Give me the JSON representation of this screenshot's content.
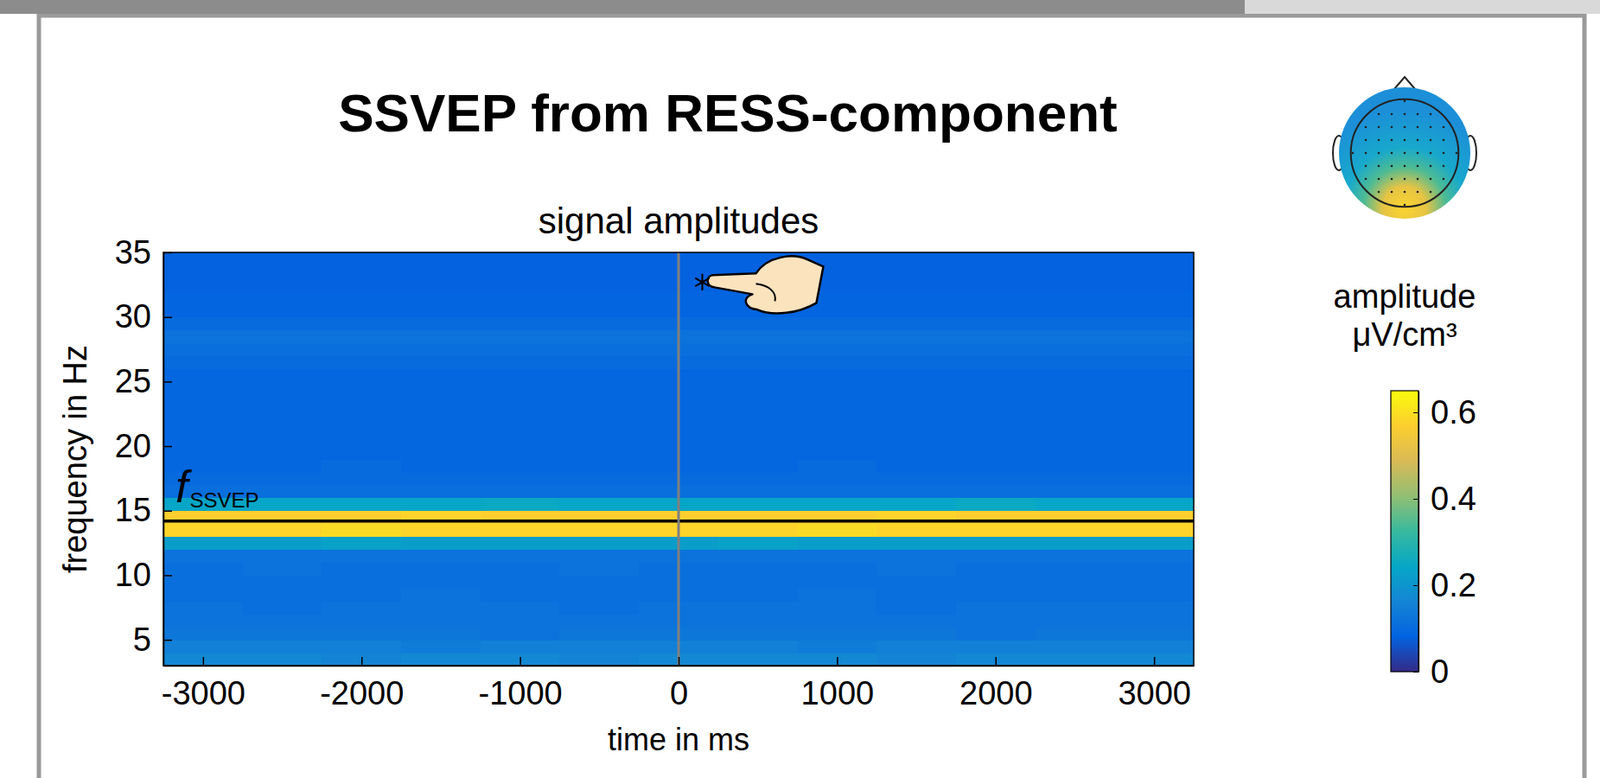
{
  "chart_data": {
    "type": "heatmap",
    "title": "SSVEP from RESS-component",
    "subtitle": "signal amplitudes",
    "x_label": "time in ms",
    "y_label": "frequency in Hz",
    "xlim": [
      -3250,
      3250
    ],
    "xticks": [
      -3000,
      -2000,
      -1000,
      0,
      1000,
      2000,
      3000
    ],
    "ylim": [
      3,
      35
    ],
    "yticks": [
      5,
      10,
      15,
      20,
      25,
      30,
      35
    ],
    "x": [
      -3000,
      -2500,
      -2000,
      -1500,
      -1000,
      -500,
      0,
      500,
      1000,
      1500,
      2000,
      2500,
      3000
    ],
    "y": [
      3.5,
      4.5,
      5.5,
      6.5,
      7.5,
      8.5,
      9.5,
      10.5,
      11.5,
      12.5,
      13.5,
      14.5,
      15.5,
      16.5,
      17.5,
      18.5,
      19.5,
      20.5,
      21.5,
      22.5,
      23.5,
      24.5,
      25.5,
      26.5,
      27.5,
      28.5,
      29.5,
      30.5,
      31.5,
      32.5,
      33.5,
      34.5
    ],
    "values": [
      [
        0.17,
        0.17,
        0.16,
        0.17,
        0.17,
        0.16,
        0.17,
        0.17,
        0.17,
        0.16,
        0.17,
        0.17,
        0.17
      ],
      [
        0.15,
        0.15,
        0.15,
        0.14,
        0.15,
        0.15,
        0.15,
        0.15,
        0.14,
        0.15,
        0.15,
        0.15,
        0.15
      ],
      [
        0.13,
        0.13,
        0.13,
        0.13,
        0.12,
        0.13,
        0.13,
        0.13,
        0.13,
        0.13,
        0.12,
        0.13,
        0.13
      ],
      [
        0.12,
        0.12,
        0.12,
        0.12,
        0.12,
        0.12,
        0.12,
        0.12,
        0.12,
        0.12,
        0.12,
        0.12,
        0.12
      ],
      [
        0.12,
        0.11,
        0.12,
        0.12,
        0.12,
        0.11,
        0.12,
        0.12,
        0.12,
        0.11,
        0.12,
        0.12,
        0.12
      ],
      [
        0.11,
        0.11,
        0.11,
        0.12,
        0.11,
        0.11,
        0.11,
        0.11,
        0.12,
        0.11,
        0.11,
        0.11,
        0.11
      ],
      [
        0.11,
        0.11,
        0.11,
        0.11,
        0.11,
        0.11,
        0.11,
        0.11,
        0.11,
        0.11,
        0.11,
        0.11,
        0.11
      ],
      [
        0.11,
        0.12,
        0.11,
        0.11,
        0.11,
        0.12,
        0.11,
        0.11,
        0.11,
        0.12,
        0.11,
        0.11,
        0.11
      ],
      [
        0.12,
        0.12,
        0.12,
        0.12,
        0.12,
        0.12,
        0.12,
        0.12,
        0.12,
        0.12,
        0.12,
        0.12,
        0.12
      ],
      [
        0.22,
        0.22,
        0.23,
        0.22,
        0.22,
        0.22,
        0.22,
        0.23,
        0.22,
        0.22,
        0.22,
        0.22,
        0.22
      ],
      [
        0.58,
        0.58,
        0.59,
        0.58,
        0.58,
        0.58,
        0.58,
        0.58,
        0.59,
        0.58,
        0.58,
        0.58,
        0.58
      ],
      [
        0.57,
        0.57,
        0.57,
        0.58,
        0.57,
        0.57,
        0.57,
        0.57,
        0.57,
        0.58,
        0.57,
        0.57,
        0.57
      ],
      [
        0.24,
        0.24,
        0.24,
        0.24,
        0.25,
        0.24,
        0.24,
        0.24,
        0.24,
        0.24,
        0.25,
        0.24,
        0.24
      ],
      [
        0.11,
        0.11,
        0.11,
        0.11,
        0.11,
        0.11,
        0.11,
        0.11,
        0.11,
        0.11,
        0.11,
        0.11,
        0.11
      ],
      [
        0.1,
        0.1,
        0.1,
        0.1,
        0.1,
        0.1,
        0.1,
        0.1,
        0.1,
        0.1,
        0.1,
        0.1,
        0.1
      ],
      [
        0.09,
        0.09,
        0.1,
        0.09,
        0.09,
        0.09,
        0.09,
        0.09,
        0.1,
        0.09,
        0.09,
        0.09,
        0.09
      ],
      [
        0.09,
        0.09,
        0.09,
        0.09,
        0.09,
        0.09,
        0.09,
        0.09,
        0.09,
        0.09,
        0.09,
        0.09,
        0.09
      ],
      [
        0.09,
        0.09,
        0.09,
        0.09,
        0.09,
        0.09,
        0.09,
        0.09,
        0.09,
        0.09,
        0.09,
        0.09,
        0.09
      ],
      [
        0.09,
        0.09,
        0.09,
        0.09,
        0.09,
        0.09,
        0.09,
        0.09,
        0.09,
        0.09,
        0.09,
        0.09,
        0.09
      ],
      [
        0.09,
        0.09,
        0.09,
        0.09,
        0.09,
        0.09,
        0.09,
        0.09,
        0.09,
        0.09,
        0.09,
        0.09,
        0.09
      ],
      [
        0.09,
        0.09,
        0.09,
        0.09,
        0.09,
        0.09,
        0.09,
        0.09,
        0.09,
        0.09,
        0.09,
        0.09,
        0.09
      ],
      [
        0.09,
        0.09,
        0.09,
        0.09,
        0.09,
        0.09,
        0.09,
        0.09,
        0.09,
        0.09,
        0.09,
        0.09,
        0.09
      ],
      [
        0.09,
        0.09,
        0.09,
        0.09,
        0.09,
        0.09,
        0.09,
        0.09,
        0.09,
        0.09,
        0.09,
        0.09,
        0.09
      ],
      [
        0.1,
        0.1,
        0.1,
        0.1,
        0.1,
        0.1,
        0.1,
        0.1,
        0.1,
        0.1,
        0.1,
        0.1,
        0.1
      ],
      [
        0.11,
        0.11,
        0.11,
        0.11,
        0.11,
        0.11,
        0.11,
        0.11,
        0.11,
        0.11,
        0.11,
        0.11,
        0.11
      ],
      [
        0.12,
        0.12,
        0.12,
        0.12,
        0.12,
        0.12,
        0.12,
        0.12,
        0.12,
        0.12,
        0.12,
        0.12,
        0.12
      ],
      [
        0.1,
        0.1,
        0.1,
        0.1,
        0.1,
        0.1,
        0.1,
        0.1,
        0.1,
        0.1,
        0.1,
        0.1,
        0.1
      ],
      [
        0.085,
        0.085,
        0.085,
        0.085,
        0.085,
        0.085,
        0.085,
        0.085,
        0.085,
        0.085,
        0.085,
        0.085,
        0.085
      ],
      [
        0.085,
        0.085,
        0.085,
        0.085,
        0.085,
        0.085,
        0.085,
        0.085,
        0.085,
        0.085,
        0.085,
        0.085,
        0.085
      ],
      [
        0.08,
        0.08,
        0.08,
        0.08,
        0.08,
        0.08,
        0.08,
        0.08,
        0.08,
        0.08,
        0.08,
        0.08,
        0.08
      ],
      [
        0.08,
        0.08,
        0.08,
        0.08,
        0.08,
        0.08,
        0.08,
        0.08,
        0.08,
        0.08,
        0.08,
        0.08,
        0.08
      ],
      [
        0.08,
        0.08,
        0.08,
        0.08,
        0.08,
        0.08,
        0.08,
        0.08,
        0.08,
        0.08,
        0.08,
        0.08,
        0.08
      ]
    ],
    "colorbar": {
      "label": [
        "amplitude",
        "μV/cm³"
      ],
      "range": [
        0,
        0.65
      ],
      "ticks": [
        0,
        0.2,
        0.4,
        0.6
      ]
    },
    "reference_lines": [
      {
        "axis": "y",
        "value": 14.2,
        "color": "#000000",
        "label": "f",
        "label_sub": "SSVEP"
      },
      {
        "axis": "x",
        "value": 0,
        "color": "#808080"
      }
    ],
    "markers": [
      {
        "x": 150,
        "y": 32.7,
        "marker": "asterisk"
      }
    ]
  }
}
